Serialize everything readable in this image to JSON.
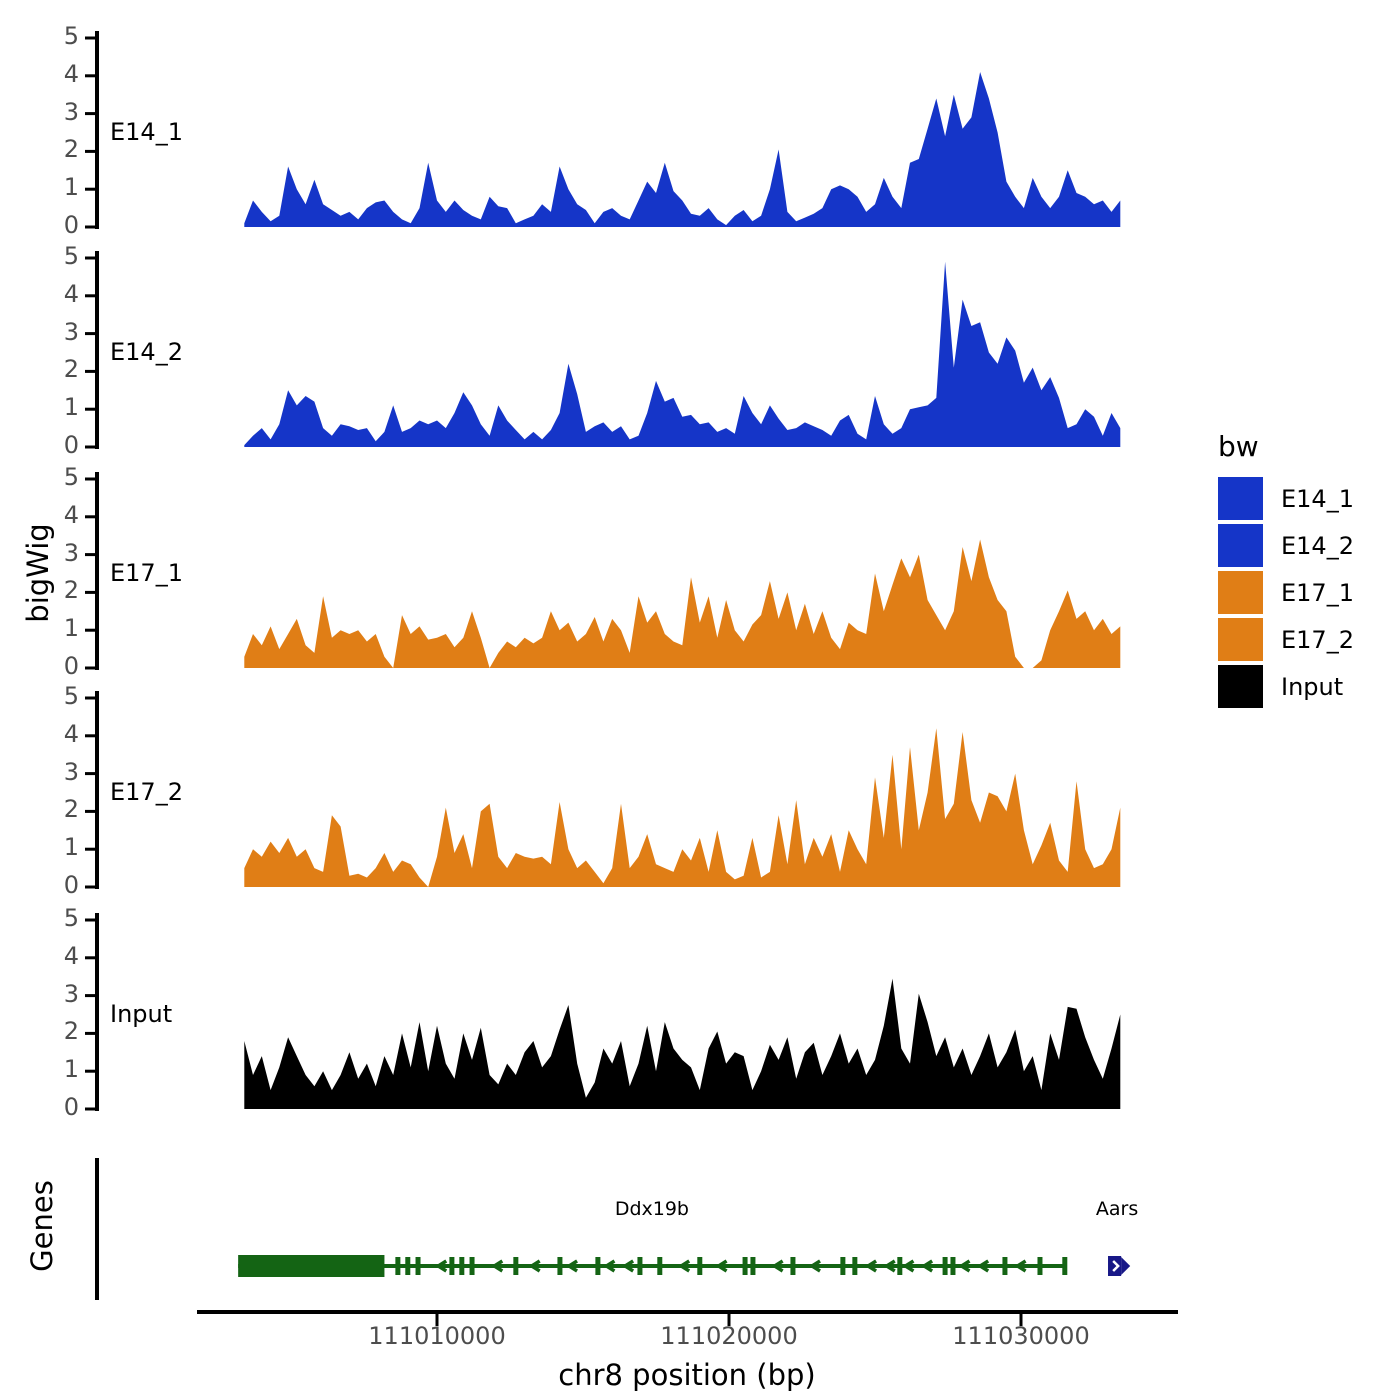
{
  "labels": {
    "y_axis_title": "bigWig",
    "genes_axis_title": "Genes",
    "x_axis_title": "chr8 position (bp)"
  },
  "colors": {
    "background": "#FFFFFF",
    "axis": "#000000",
    "tick_text": "#4D4D4D",
    "blue": "#1535C8",
    "orange": "#E07E16",
    "black": "#000000",
    "gene_green": "#146414",
    "gene_navy": "#181887"
  },
  "y_tick_labels": [
    "0",
    "1",
    "2",
    "3",
    "4",
    "5"
  ],
  "x_ticks": [
    {
      "bp": 111010000,
      "label": "111010000"
    },
    {
      "bp": 111020000,
      "label": "111020000"
    },
    {
      "bp": 111030000,
      "label": "111030000"
    }
  ],
  "legend": {
    "title": "bw",
    "items": [
      {
        "label": "E14_1",
        "color": "#1535C8"
      },
      {
        "label": "E14_2",
        "color": "#1535C8"
      },
      {
        "label": "E17_1",
        "color": "#E07E16"
      },
      {
        "label": "E17_2",
        "color": "#E07E16"
      },
      {
        "label": "Input",
        "color": "#000000"
      }
    ]
  },
  "genes": {
    "items": [
      {
        "name": "Ddx19b",
        "strand": "-",
        "color": "#146414",
        "label_center_bp": 111017360,
        "line_bp": [
          111003190,
          111031500
        ],
        "thick_box_bp": [
          111003190,
          111008200
        ],
        "exon_bars_bp": [
          111008660,
          111009000,
          111009350,
          111010510,
          111010850,
          111011200,
          111012700,
          111014210,
          111015510,
          111016950,
          111017630,
          111019000,
          111020550,
          111020820,
          111022190,
          111023900,
          111024310,
          111025850,
          111027400,
          111027670,
          111029450,
          111030650,
          111031500
        ],
        "chevron_start_bp": 111008900,
        "chevron_end_bp": 111031300,
        "chevron_step_bp": 640
      },
      {
        "name": "Aars",
        "strand": "+",
        "color": "#181887",
        "label_center_bp": 111033290,
        "box_bp": [
          111032980,
          111033430
        ],
        "arrow_tip_bp": 111033740
      }
    ]
  },
  "chart_data": {
    "type": "area",
    "title": "",
    "xlabel": "chr8 position (bp)",
    "ylabel": "bigWig",
    "legend_title": "bw",
    "legend_position": "right",
    "facets": [
      "E14_1",
      "E14_2",
      "E17_1",
      "E17_2",
      "Input"
    ],
    "ylim": [
      0,
      5
    ],
    "y_ticks": [
      0,
      1,
      2,
      3,
      4,
      5
    ],
    "xlim": [
      111003200,
      111033750
    ],
    "x_ticks_bp": [
      111010000,
      111020000,
      111030000
    ],
    "x_bp_start": 111003400,
    "x_bp_step": 300,
    "n_points": 101,
    "series": [
      {
        "name": "E14_1",
        "color": "#1535C8",
        "values": [
          0.1,
          0.7,
          0.4,
          0.15,
          0.3,
          1.6,
          1.0,
          0.6,
          1.25,
          0.6,
          0.45,
          0.3,
          0.4,
          0.2,
          0.5,
          0.65,
          0.7,
          0.4,
          0.2,
          0.1,
          0.5,
          1.7,
          0.7,
          0.4,
          0.7,
          0.45,
          0.3,
          0.2,
          0.8,
          0.55,
          0.5,
          0.1,
          0.2,
          0.3,
          0.6,
          0.4,
          1.6,
          1.0,
          0.6,
          0.45,
          0.1,
          0.4,
          0.5,
          0.3,
          0.2,
          0.7,
          1.2,
          0.9,
          1.7,
          0.95,
          0.7,
          0.35,
          0.3,
          0.5,
          0.2,
          0.05,
          0.3,
          0.45,
          0.15,
          0.3,
          1.0,
          2.05,
          0.4,
          0.15,
          0.25,
          0.35,
          0.5,
          1.0,
          1.1,
          1.0,
          0.8,
          0.4,
          0.6,
          1.3,
          0.8,
          0.5,
          1.7,
          1.8,
          2.6,
          3.4,
          2.4,
          3.5,
          2.6,
          2.9,
          4.1,
          3.4,
          2.5,
          1.2,
          0.8,
          0.5,
          1.3,
          0.8,
          0.5,
          0.8,
          1.5,
          0.9,
          0.8,
          0.6,
          0.7,
          0.4,
          0.7
        ]
      },
      {
        "name": "E14_2",
        "color": "#1535C8",
        "values": [
          0.05,
          0.3,
          0.5,
          0.2,
          0.6,
          1.5,
          1.1,
          1.35,
          1.2,
          0.5,
          0.3,
          0.6,
          0.55,
          0.45,
          0.5,
          0.15,
          0.4,
          1.1,
          0.4,
          0.5,
          0.7,
          0.6,
          0.7,
          0.5,
          0.9,
          1.45,
          1.1,
          0.6,
          0.3,
          1.1,
          0.7,
          0.45,
          0.2,
          0.4,
          0.2,
          0.45,
          0.9,
          2.2,
          1.4,
          0.4,
          0.55,
          0.65,
          0.4,
          0.55,
          0.2,
          0.3,
          0.9,
          1.75,
          1.2,
          1.3,
          0.8,
          0.85,
          0.6,
          0.65,
          0.4,
          0.5,
          0.35,
          1.35,
          0.9,
          0.6,
          1.1,
          0.75,
          0.45,
          0.5,
          0.65,
          0.55,
          0.45,
          0.3,
          0.7,
          0.85,
          0.35,
          0.2,
          1.35,
          0.6,
          0.35,
          0.5,
          1.0,
          1.05,
          1.1,
          1.3,
          4.9,
          2.1,
          3.9,
          3.2,
          3.3,
          2.5,
          2.2,
          2.9,
          2.55,
          1.7,
          2.1,
          1.5,
          1.85,
          1.3,
          0.5,
          0.6,
          1.0,
          0.8,
          0.3,
          0.9,
          0.5
        ]
      },
      {
        "name": "E17_1",
        "color": "#E07E16",
        "values": [
          0.3,
          0.9,
          0.6,
          1.1,
          0.5,
          0.9,
          1.3,
          0.6,
          0.4,
          1.9,
          0.8,
          1.0,
          0.9,
          1.0,
          0.7,
          0.9,
          0.3,
          0,
          1.4,
          0.9,
          1.1,
          0.75,
          0.8,
          0.9,
          0.55,
          0.8,
          1.5,
          0.8,
          0,
          0.4,
          0.7,
          0.55,
          0.8,
          0.65,
          0.8,
          1.5,
          1.0,
          1.2,
          0.7,
          0.9,
          1.35,
          0.7,
          1.3,
          1.0,
          0.4,
          1.9,
          1.2,
          1.5,
          0.9,
          0.7,
          0.6,
          2.4,
          1.2,
          1.9,
          0.8,
          1.8,
          1.0,
          0.7,
          1.15,
          1.4,
          2.3,
          1.3,
          2.0,
          1.0,
          1.7,
          0.9,
          1.5,
          0.8,
          0.5,
          1.2,
          1.0,
          0.9,
          2.5,
          1.5,
          2.2,
          2.9,
          2.4,
          3.0,
          1.8,
          1.4,
          1.0,
          1.5,
          3.2,
          2.3,
          3.4,
          2.4,
          1.8,
          1.5,
          0.3,
          0,
          0,
          0.2,
          1.0,
          1.5,
          2.05,
          1.3,
          1.5,
          1.0,
          1.3,
          0.9,
          1.1
        ]
      },
      {
        "name": "E17_2",
        "color": "#E07E16",
        "values": [
          0.5,
          1.0,
          0.8,
          1.2,
          0.9,
          1.3,
          0.8,
          1.0,
          0.5,
          0.4,
          1.9,
          1.6,
          0.3,
          0.35,
          0.25,
          0.5,
          0.9,
          0.4,
          0.7,
          0.6,
          0.25,
          0,
          0.8,
          2.1,
          0.9,
          1.4,
          0.5,
          2.0,
          2.2,
          0.8,
          0.5,
          0.9,
          0.8,
          0.75,
          0.8,
          0.6,
          2.25,
          1.0,
          0.5,
          0.7,
          0.4,
          0.1,
          0.5,
          2.2,
          0.5,
          0.8,
          1.4,
          0.6,
          0.5,
          0.4,
          1.0,
          0.7,
          1.3,
          0.4,
          1.5,
          0.4,
          0.2,
          0.3,
          1.3,
          0.25,
          0.4,
          1.9,
          0.6,
          2.3,
          0.6,
          1.3,
          0.8,
          1.4,
          0.4,
          1.5,
          1.0,
          0.6,
          2.9,
          1.3,
          3.5,
          1.0,
          3.7,
          1.5,
          2.5,
          4.2,
          1.8,
          2.2,
          4.1,
          2.3,
          1.7,
          2.5,
          2.4,
          2.0,
          3.0,
          1.5,
          0.6,
          1.1,
          1.7,
          0.7,
          0.4,
          2.8,
          1.0,
          0.5,
          0.6,
          1.0,
          2.1
        ]
      },
      {
        "name": "Input",
        "color": "#000000",
        "values": [
          1.8,
          0.9,
          1.4,
          0.5,
          1.1,
          1.9,
          1.4,
          0.9,
          0.6,
          1.0,
          0.5,
          0.9,
          1.5,
          0.8,
          1.2,
          0.6,
          1.4,
          0.9,
          2.0,
          1.1,
          2.3,
          1.0,
          2.2,
          1.2,
          0.8,
          2.0,
          1.3,
          2.15,
          0.9,
          0.65,
          1.2,
          0.9,
          1.5,
          1.8,
          1.1,
          1.4,
          2.1,
          2.75,
          1.2,
          0.3,
          0.7,
          1.6,
          1.2,
          1.8,
          0.6,
          1.2,
          2.2,
          1.0,
          2.3,
          1.6,
          1.3,
          1.1,
          0.5,
          1.6,
          2.05,
          1.2,
          1.5,
          1.4,
          0.5,
          1.0,
          1.7,
          1.3,
          1.9,
          0.8,
          1.5,
          1.75,
          0.9,
          1.4,
          2.0,
          1.2,
          1.6,
          0.9,
          1.3,
          2.2,
          3.45,
          1.6,
          1.2,
          3.05,
          2.3,
          1.4,
          1.9,
          1.1,
          1.6,
          0.9,
          1.4,
          2.0,
          1.1,
          1.5,
          2.1,
          1.0,
          1.4,
          0.5,
          2.0,
          1.3,
          2.7,
          2.65,
          1.9,
          1.3,
          0.8,
          1.6,
          2.5
        ]
      }
    ]
  }
}
